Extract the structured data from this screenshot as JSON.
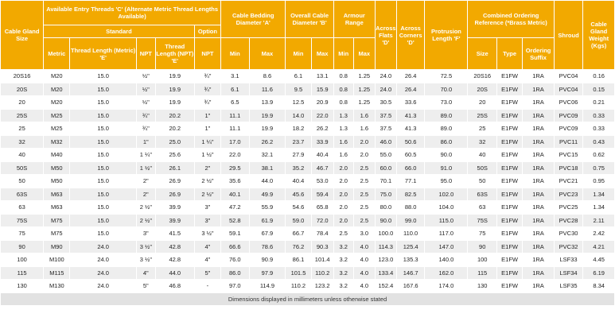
{
  "header": {
    "cable_gland_size": "Cable Gland Size",
    "available_entry_threads": "Available Entry Threads 'C' (Alternate Metric Thread Lengths Available)",
    "standard": "Standard",
    "option": "Option",
    "metric": "Metric",
    "thread_length_metric": "Thread Length (Metric) 'E'",
    "npt": "NPT",
    "thread_length_npt": "Thread Length (NPT) 'E'",
    "option_npt": "NPT",
    "cable_bedding_diameter": "Cable Bedding Diameter 'A'",
    "overall_cable_diameter": "Overall Cable Diameter 'B'",
    "armour_range": "Armour Range",
    "across_flats": "Across Flats 'D'",
    "across_corners": "Across Corners 'D'",
    "protrusion_length": "Protrusion Length 'F'",
    "combined_ordering_reference": "Combined Ordering Reference (*Brass Metric)",
    "shroud": "Shroud",
    "cable_gland_weight": "Cable Gland Weight (Kgs)",
    "min1": "Min",
    "max1": "Max",
    "min2": "Min",
    "max2": "Max",
    "min3": "Min",
    "max3": "Max",
    "size": "Size",
    "type": "Type",
    "ordering_suffix": "Ordering Suffix"
  },
  "rows": [
    [
      "20S16",
      "M20",
      "15.0",
      "½\"",
      "19.9",
      "¾\"",
      "3.1",
      "8.6",
      "6.1",
      "13.1",
      "0.8",
      "1.25",
      "24.0",
      "26.4",
      "72.5",
      "20S16",
      "E1FW",
      "1RA",
      "PVC04",
      "0.16"
    ],
    [
      "20S",
      "M20",
      "15.0",
      "½\"",
      "19.9",
      "¾\"",
      "6.1",
      "11.6",
      "9.5",
      "15.9",
      "0.8",
      "1.25",
      "24.0",
      "26.4",
      "70.0",
      "20S",
      "E1FW",
      "1RA",
      "PVC04",
      "0.15"
    ],
    [
      "20",
      "M20",
      "15.0",
      "½\"",
      "19.9",
      "¾\"",
      "6.5",
      "13.9",
      "12.5",
      "20.9",
      "0.8",
      "1.25",
      "30.5",
      "33.6",
      "73.0",
      "20",
      "E1FW",
      "1RA",
      "PVC06",
      "0.21"
    ],
    [
      "25S",
      "M25",
      "15.0",
      "¾\"",
      "20.2",
      "1\"",
      "11.1",
      "19.9",
      "14.0",
      "22.0",
      "1.3",
      "1.6",
      "37.5",
      "41.3",
      "89.0",
      "25S",
      "E1FW",
      "1RA",
      "PVC09",
      "0.33"
    ],
    [
      "25",
      "M25",
      "15.0",
      "¾\"",
      "20.2",
      "1\"",
      "11.1",
      "19.9",
      "18.2",
      "26.2",
      "1.3",
      "1.6",
      "37.5",
      "41.3",
      "89.0",
      "25",
      "E1FW",
      "1RA",
      "PVC09",
      "0.33"
    ],
    [
      "32",
      "M32",
      "15.0",
      "1\"",
      "25.0",
      "1 ¼\"",
      "17.0",
      "26.2",
      "23.7",
      "33.9",
      "1.6",
      "2.0",
      "46.0",
      "50.6",
      "86.0",
      "32",
      "E1FW",
      "1RA",
      "PVC11",
      "0.43"
    ],
    [
      "40",
      "M40",
      "15.0",
      "1 ¼\"",
      "25.6",
      "1 ½\"",
      "22.0",
      "32.1",
      "27.9",
      "40.4",
      "1.6",
      "2.0",
      "55.0",
      "60.5",
      "90.0",
      "40",
      "E1FW",
      "1RA",
      "PVC15",
      "0.62"
    ],
    [
      "50S",
      "M50",
      "15.0",
      "1 ½\"",
      "26.1",
      "2\"",
      "29.5",
      "38.1",
      "35.2",
      "46.7",
      "2.0",
      "2.5",
      "60.0",
      "66.0",
      "91.0",
      "50S",
      "E1FW",
      "1RA",
      "PVC18",
      "0.75"
    ],
    [
      "50",
      "M50",
      "15.0",
      "2\"",
      "26.9",
      "2 ½\"",
      "35.6",
      "44.0",
      "40.4",
      "53.0",
      "2.0",
      "2.5",
      "70.1",
      "77.1",
      "95.0",
      "50",
      "E1FW",
      "1RA",
      "PVC21",
      "0.95"
    ],
    [
      "63S",
      "M63",
      "15.0",
      "2\"",
      "26.9",
      "2 ½\"",
      "40.1",
      "49.9",
      "45.6",
      "59.4",
      "2.0",
      "2.5",
      "75.0",
      "82.5",
      "102.0",
      "63S",
      "E1FW",
      "1RA",
      "PVC23",
      "1.34"
    ],
    [
      "63",
      "M63",
      "15.0",
      "2 ½\"",
      "39.9",
      "3\"",
      "47.2",
      "55.9",
      "54.6",
      "65.8",
      "2.0",
      "2.5",
      "80.0",
      "88.0",
      "104.0",
      "63",
      "E1FW",
      "1RA",
      "PVC25",
      "1.34"
    ],
    [
      "75S",
      "M75",
      "15.0",
      "2 ½\"",
      "39.9",
      "3\"",
      "52.8",
      "61.9",
      "59.0",
      "72.0",
      "2.0",
      "2.5",
      "90.0",
      "99.0",
      "115.0",
      "75S",
      "E1FW",
      "1RA",
      "PVC28",
      "2.11"
    ],
    [
      "75",
      "M75",
      "15.0",
      "3\"",
      "41.5",
      "3 ½\"",
      "59.1",
      "67.9",
      "66.7",
      "78.4",
      "2.5",
      "3.0",
      "100.0",
      "110.0",
      "117.0",
      "75",
      "E1FW",
      "1RA",
      "PVC30",
      "2.42"
    ],
    [
      "90",
      "M90",
      "24.0",
      "3 ½\"",
      "42.8",
      "4\"",
      "66.6",
      "78.6",
      "76.2",
      "90.3",
      "3.2",
      "4.0",
      "114.3",
      "125.4",
      "147.0",
      "90",
      "E1FW",
      "1RA",
      "PVC32",
      "4.21"
    ],
    [
      "100",
      "M100",
      "24.0",
      "3 ½\"",
      "42.8",
      "4\"",
      "76.0",
      "90.9",
      "86.1",
      "101.4",
      "3.2",
      "4.0",
      "123.0",
      "135.3",
      "140.0",
      "100",
      "E1FW",
      "1RA",
      "LSF33",
      "4.45"
    ],
    [
      "115",
      "M115",
      "24.0",
      "4\"",
      "44.0",
      "5\"",
      "86.0",
      "97.9",
      "101.5",
      "110.2",
      "3.2",
      "4.0",
      "133.4",
      "146.7",
      "162.0",
      "115",
      "E1FW",
      "1RA",
      "LSF34",
      "6.19"
    ],
    [
      "130",
      "M130",
      "24.0",
      "5\"",
      "46.8",
      "-",
      "97.0",
      "114.9",
      "110.2",
      "123.2",
      "3.2",
      "4.0",
      "152.4",
      "167.6",
      "174.0",
      "130",
      "E1FW",
      "1RA",
      "LSF35",
      "8.34"
    ]
  ],
  "footer": "Dimensions displayed in millimeters unless otherwise stated",
  "colors": {
    "header_bg": "#f2a900",
    "header_text": "#ffffff",
    "row_alt_bg": "#eeeeee",
    "footer_bg": "#e2e2e2"
  }
}
